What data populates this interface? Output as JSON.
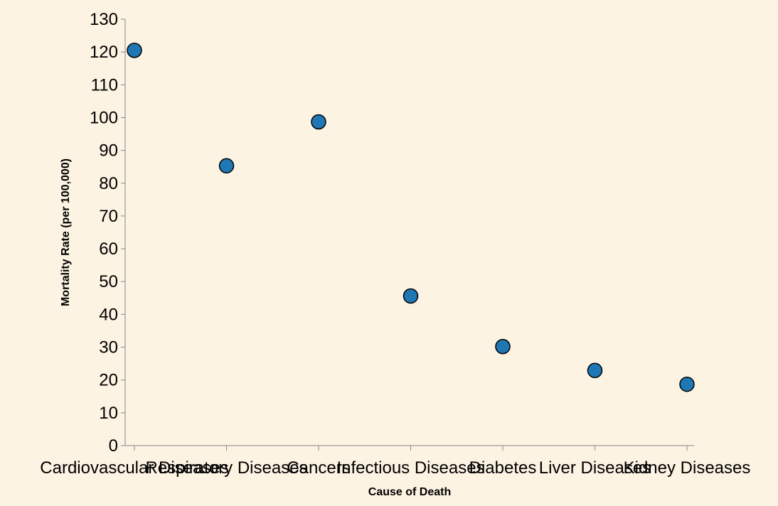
{
  "chart_data": {
    "type": "scatter",
    "xlabel": "Cause of Death",
    "ylabel": "Mortality Rate (per 100,000)",
    "categories": [
      "Cardiovascular Diseases",
      "Respiratory Diseases",
      "Cancers",
      "Infectious Diseases",
      "Diabetes",
      "Liver Diseases",
      "Kidney Diseases"
    ],
    "values": [
      120.5,
      85.3,
      98.7,
      45.6,
      30.2,
      22.9,
      18.7
    ],
    "ylim": [
      0,
      130
    ],
    "yticks": [
      0,
      10,
      20,
      30,
      40,
      50,
      60,
      70,
      80,
      90,
      100,
      110,
      120,
      130
    ],
    "grid": false,
    "colors": {
      "point_fill": "#1f77b4",
      "point_stroke": "#000000",
      "background": "#fdf3e3",
      "axis": "#888888"
    }
  }
}
